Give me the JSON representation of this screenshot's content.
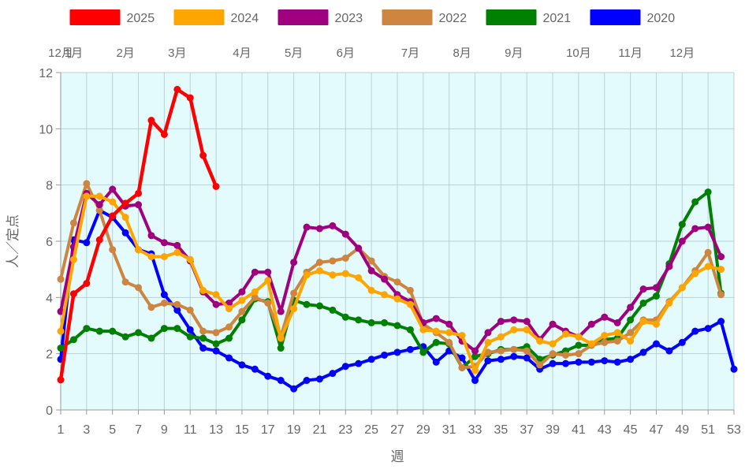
{
  "chart_data": {
    "type": "line",
    "xlabel": "週",
    "ylabel": "人／定点",
    "xlim": [
      1,
      53
    ],
    "ylim": [
      0,
      12
    ],
    "x_ticks": [
      1,
      3,
      5,
      7,
      9,
      11,
      13,
      15,
      17,
      19,
      21,
      23,
      25,
      27,
      29,
      31,
      33,
      35,
      37,
      39,
      41,
      43,
      45,
      47,
      49,
      51,
      53
    ],
    "y_ticks": [
      0,
      2,
      4,
      6,
      8,
      10,
      12
    ],
    "month_labels": [
      {
        "week": 1,
        "label": "12月"
      },
      {
        "week": 2,
        "label": "1月"
      },
      {
        "week": 6,
        "label": "2月"
      },
      {
        "week": 10,
        "label": "3月"
      },
      {
        "week": 15,
        "label": "4月"
      },
      {
        "week": 19,
        "label": "5月"
      },
      {
        "week": 23,
        "label": "6月"
      },
      {
        "week": 28,
        "label": "7月"
      },
      {
        "week": 32,
        "label": "8月"
      },
      {
        "week": 36,
        "label": "9月"
      },
      {
        "week": 41,
        "label": "10月"
      },
      {
        "week": 45,
        "label": "11月"
      },
      {
        "week": 49,
        "label": "12月"
      }
    ],
    "grid": true,
    "legend_position": "top",
    "plot_background": "#e4fbfd",
    "series": [
      {
        "name": "2025",
        "color": "#ff0000",
        "line_width": 4.5,
        "values": [
          1.07,
          4.13,
          4.5,
          6.05,
          6.9,
          7.35,
          7.7,
          10.3,
          9.8,
          11.4,
          11.1,
          9.05,
          7.95
        ]
      },
      {
        "name": "2024",
        "color": "#ffa500",
        "line_width": 4,
        "values": [
          2.8,
          5.35,
          7.6,
          7.6,
          7.4,
          6.85,
          5.7,
          5.45,
          5.45,
          5.6,
          5.35,
          4.25,
          4.1,
          3.6,
          3.9,
          4.2,
          4.6,
          2.55,
          3.6,
          4.8,
          4.95,
          4.8,
          4.85,
          4.7,
          4.25,
          4.1,
          3.95,
          3.75,
          2.85,
          2.8,
          2.75,
          2.65,
          1.4,
          2.4,
          2.6,
          2.85,
          2.85,
          2.45,
          2.35,
          2.7,
          2.6,
          2.35,
          2.65,
          2.75,
          2.45,
          3.15,
          3.05,
          3.8,
          4.35,
          4.85,
          5.1,
          5.0
        ]
      },
      {
        "name": "2023",
        "color": "#a0007f",
        "line_width": 4,
        "values": [
          3.5,
          5.8,
          7.7,
          7.3,
          7.85,
          7.25,
          7.3,
          6.2,
          5.95,
          5.85,
          5.3,
          4.2,
          3.75,
          3.8,
          4.2,
          4.9,
          4.9,
          3.5,
          5.25,
          6.5,
          6.45,
          6.55,
          6.25,
          5.75,
          4.95,
          4.65,
          4.1,
          3.85,
          3.1,
          3.25,
          3.05,
          2.45,
          2.1,
          2.75,
          3.15,
          3.2,
          3.15,
          2.5,
          3.05,
          2.8,
          2.6,
          3.05,
          3.3,
          3.1,
          3.65,
          4.3,
          4.35,
          5.1,
          6.0,
          6.45,
          6.5,
          5.45
        ]
      },
      {
        "name": "2022",
        "color": "#cd853f",
        "line_width": 4,
        "values": [
          4.65,
          6.65,
          8.05,
          7.1,
          5.7,
          4.55,
          4.35,
          3.65,
          3.8,
          3.75,
          3.55,
          2.8,
          2.75,
          2.95,
          3.5,
          4.0,
          3.8,
          2.6,
          4.15,
          4.9,
          5.25,
          5.3,
          5.4,
          5.75,
          5.3,
          4.75,
          4.55,
          4.25,
          3.05,
          2.75,
          2.4,
          1.5,
          1.55,
          2.05,
          2.1,
          2.15,
          2.1,
          1.6,
          2.0,
          1.95,
          2.0,
          2.3,
          2.4,
          2.45,
          2.75,
          3.2,
          3.2,
          3.85,
          4.35,
          4.95,
          5.6,
          4.1
        ]
      },
      {
        "name": "2021",
        "color": "#008000",
        "line_width": 4,
        "values": [
          2.2,
          2.5,
          2.9,
          2.8,
          2.8,
          2.6,
          2.75,
          2.55,
          2.9,
          2.9,
          2.6,
          2.55,
          2.35,
          2.55,
          3.2,
          3.95,
          3.85,
          2.2,
          3.9,
          3.75,
          3.7,
          3.55,
          3.3,
          3.2,
          3.1,
          3.1,
          3.0,
          2.85,
          2.05,
          2.4,
          2.35,
          1.5,
          1.9,
          2.0,
          2.15,
          2.15,
          2.25,
          1.8,
          1.95,
          2.1,
          2.3,
          2.3,
          2.5,
          2.55,
          3.2,
          3.8,
          4.05,
          5.2,
          6.6,
          7.4,
          7.75,
          4.15
        ]
      },
      {
        "name": "2020",
        "color": "#0000ff",
        "line_width": 4,
        "values": [
          1.8,
          6.05,
          5.95,
          7.1,
          6.85,
          6.3,
          5.7,
          5.55,
          4.1,
          3.55,
          2.85,
          2.2,
          2.1,
          1.85,
          1.6,
          1.45,
          1.2,
          1.05,
          0.75,
          1.05,
          1.1,
          1.3,
          1.55,
          1.65,
          1.8,
          1.95,
          2.05,
          2.15,
          2.25,
          1.7,
          2.1,
          1.85,
          1.05,
          1.75,
          1.8,
          1.9,
          1.85,
          1.45,
          1.65,
          1.65,
          1.7,
          1.7,
          1.75,
          1.7,
          1.8,
          2.05,
          2.35,
          2.1,
          2.4,
          2.8,
          2.9,
          3.15,
          1.45
        ]
      }
    ]
  }
}
